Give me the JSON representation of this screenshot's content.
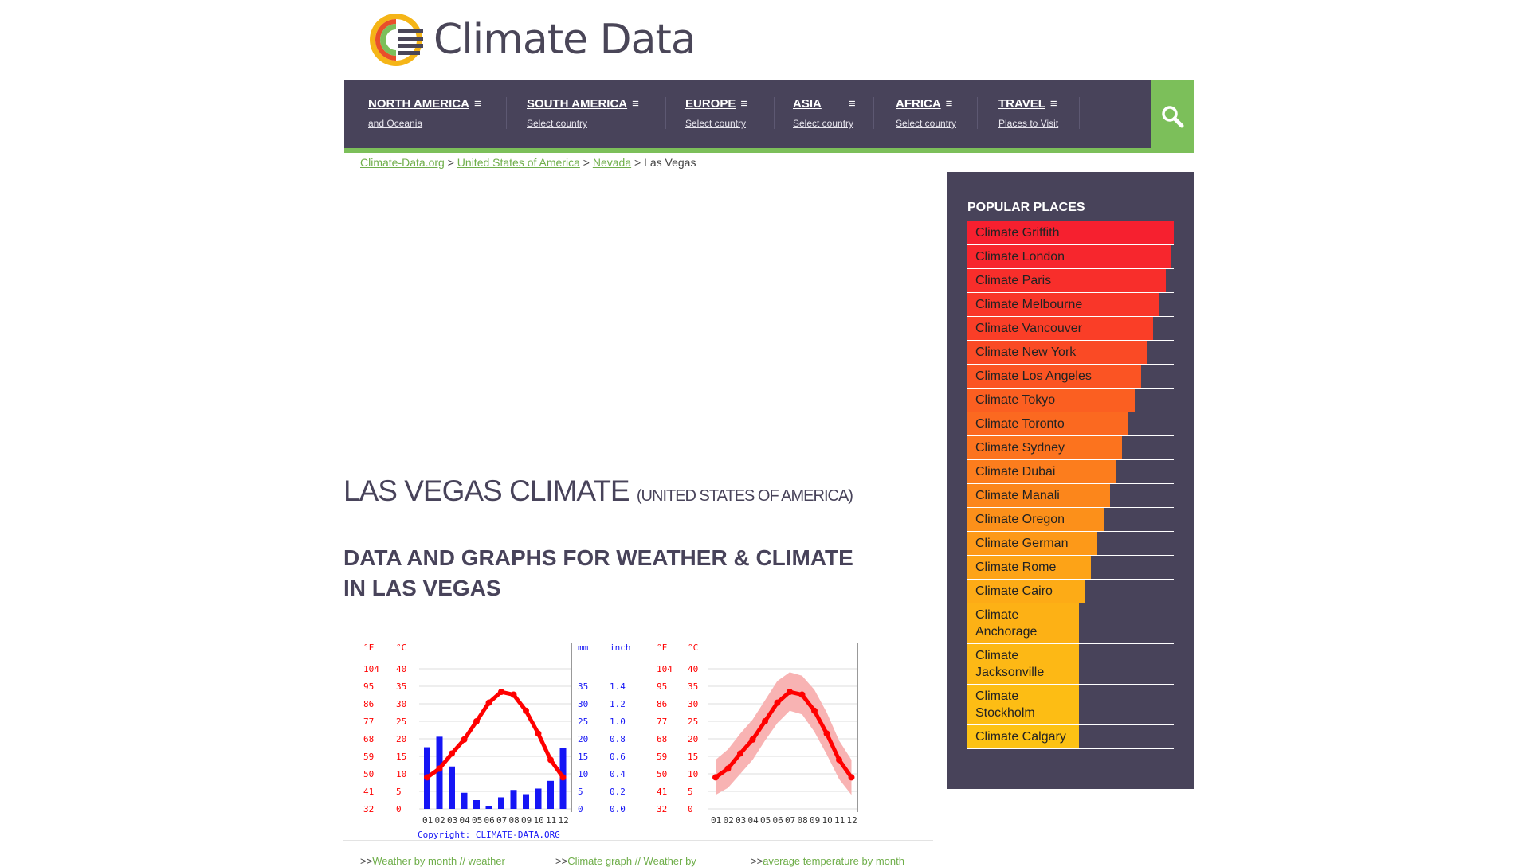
{
  "logo": {
    "text": "Climate Data"
  },
  "nav": [
    {
      "title": "NORTH AMERICA",
      "sub": "and Oceania"
    },
    {
      "title": "SOUTH AMERICA",
      "sub": "Select country"
    },
    {
      "title": "EUROPE",
      "sub": "Select country"
    },
    {
      "title": "ASIA",
      "sub": "Select country"
    },
    {
      "title": "AFRICA",
      "sub": "Select country"
    },
    {
      "title": "TRAVEL",
      "sub": "Places to Visit"
    }
  ],
  "menu_glyph": "≡",
  "breadcrumb": {
    "items": [
      "Climate-Data.org",
      "United States of America",
      "Nevada"
    ],
    "sep": ">",
    "current": "Las Vegas"
  },
  "page": {
    "title": "LAS VEGAS CLIMATE",
    "subtitle": "(UNITED STATES OF AMERICA)",
    "heading": "DATA AND GRAPHS FOR WEATHER & CLIMATE IN LAS VEGAS"
  },
  "sidebar": {
    "title": "POPULAR PLACES",
    "items": [
      {
        "label": "Climate Griffith",
        "pct": 100,
        "color": "#f6202f"
      },
      {
        "label": "Climate London",
        "pct": 99,
        "color": "#f7262d"
      },
      {
        "label": "Climate Paris",
        "pct": 96,
        "color": "#f82e2b"
      },
      {
        "label": "Climate Melbourne",
        "pct": 93,
        "color": "#f93629"
      },
      {
        "label": "Climate Vancouver",
        "pct": 90,
        "color": "#fa3e27"
      },
      {
        "label": "Climate New York",
        "pct": 87,
        "color": "#fa4a25"
      },
      {
        "label": "Climate Los Angeles",
        "pct": 84,
        "color": "#fb5423"
      },
      {
        "label": "Climate Tokyo",
        "pct": 81,
        "color": "#fb5f21"
      },
      {
        "label": "Climate Toronto",
        "pct": 78,
        "color": "#fb6920"
      },
      {
        "label": "Climate Sydney",
        "pct": 75,
        "color": "#fc731e"
      },
      {
        "label": "Climate Dubai",
        "pct": 72,
        "color": "#fc7d1d"
      },
      {
        "label": "Climate Manali",
        "pct": 69,
        "color": "#fc861b"
      },
      {
        "label": "Climate Oregon",
        "pct": 66,
        "color": "#fc901a"
      },
      {
        "label": "Climate German",
        "pct": 63,
        "color": "#fd9918"
      },
      {
        "label": "Climate Rome",
        "pct": 60,
        "color": "#fda317"
      },
      {
        "label": "Climate Cairo",
        "pct": 57,
        "color": "#fdab16"
      },
      {
        "label": "Climate Anchorage",
        "pct": 54,
        "color": "#fdb115"
      },
      {
        "label": "Climate Jacksonville",
        "pct": 54,
        "color": "#fdb815"
      },
      {
        "label": "Climate Stockholm",
        "pct": 54,
        "color": "#fdbd14"
      },
      {
        "label": "Climate Calgary",
        "pct": 54,
        "color": "#fdc214"
      }
    ]
  },
  "chart_data": [
    {
      "type": "bar",
      "categories": [
        "01",
        "02",
        "03",
        "04",
        "05",
        "06",
        "07",
        "08",
        "09",
        "10",
        "11",
        "12"
      ],
      "series": [
        {
          "values": [
            17.6,
            20.6,
            12.1,
            4.6,
            2.5,
            0.9,
            3.3,
            5.4,
            4.2,
            5.8,
            8.0,
            17.5
          ],
          "color": "#1515f5"
        },
        {
          "values": [
            9.0,
            11.5,
            15.8,
            19.8,
            25.0,
            30.3,
            33.4,
            32.6,
            28.0,
            21.5,
            14.0,
            9.0
          ],
          "color": "#ff0000"
        }
      ],
      "tick_labels": {
        "f": [
          "104",
          "95",
          "86",
          "77",
          "68",
          "59",
          "50",
          "41",
          "32"
        ],
        "c": [
          "40",
          "35",
          "30",
          "25",
          "20",
          "15",
          "10",
          "5",
          "0"
        ],
        "mm": [
          "35",
          "30",
          "25",
          "20",
          "15",
          "10",
          "5",
          "0"
        ],
        "inch": [
          "1.4",
          "1.2",
          "1.0",
          "0.8",
          "0.6",
          "0.4",
          "0.2",
          "0.0"
        ]
      },
      "units": {
        "f": "°F",
        "c": "°C",
        "mm": "mm",
        "inch": "inch"
      },
      "copyright": "Copyright: CLIMATE-DATA.ORG",
      "ylim_c": [
        0,
        40
      ],
      "ylim_mm": [
        0,
        35
      ]
    },
    {
      "type": "area",
      "categories": [
        "01",
        "02",
        "03",
        "04",
        "05",
        "06",
        "07",
        "08",
        "09",
        "10",
        "11",
        "12"
      ],
      "series": [
        {
          "values": [
            9.0,
            11.5,
            15.8,
            19.8,
            25.0,
            30.3,
            33.4,
            32.6,
            28.0,
            21.5,
            14.0,
            9.0
          ],
          "color": "#ff0000"
        }
      ],
      "range_low": [
        4.0,
        6.0,
        10.0,
        14.0,
        19.5,
        24.5,
        28.0,
        27.0,
        22.0,
        15.5,
        8.5,
        4.0
      ],
      "range_high": [
        14.0,
        17.0,
        21.5,
        25.5,
        31.0,
        36.5,
        39.0,
        38.0,
        34.0,
        27.5,
        19.5,
        14.0
      ],
      "range_color": "#f8b3b3",
      "tick_labels": {
        "f": [
          "104",
          "95",
          "86",
          "77",
          "68",
          "59",
          "50",
          "41",
          "32"
        ],
        "c": [
          "40",
          "35",
          "30",
          "25",
          "20",
          "15",
          "10",
          "5",
          "0"
        ]
      },
      "units": {
        "f": "°F",
        "c": "°C"
      },
      "ylim_c": [
        0,
        40
      ]
    }
  ],
  "bottom_links": [
    {
      "prefix": ">>",
      "text": "Weather by month // weather"
    },
    {
      "prefix": ">>",
      "text": "Climate graph // Weather by"
    },
    {
      "prefix": ">>",
      "text": "average temperature by month"
    }
  ]
}
